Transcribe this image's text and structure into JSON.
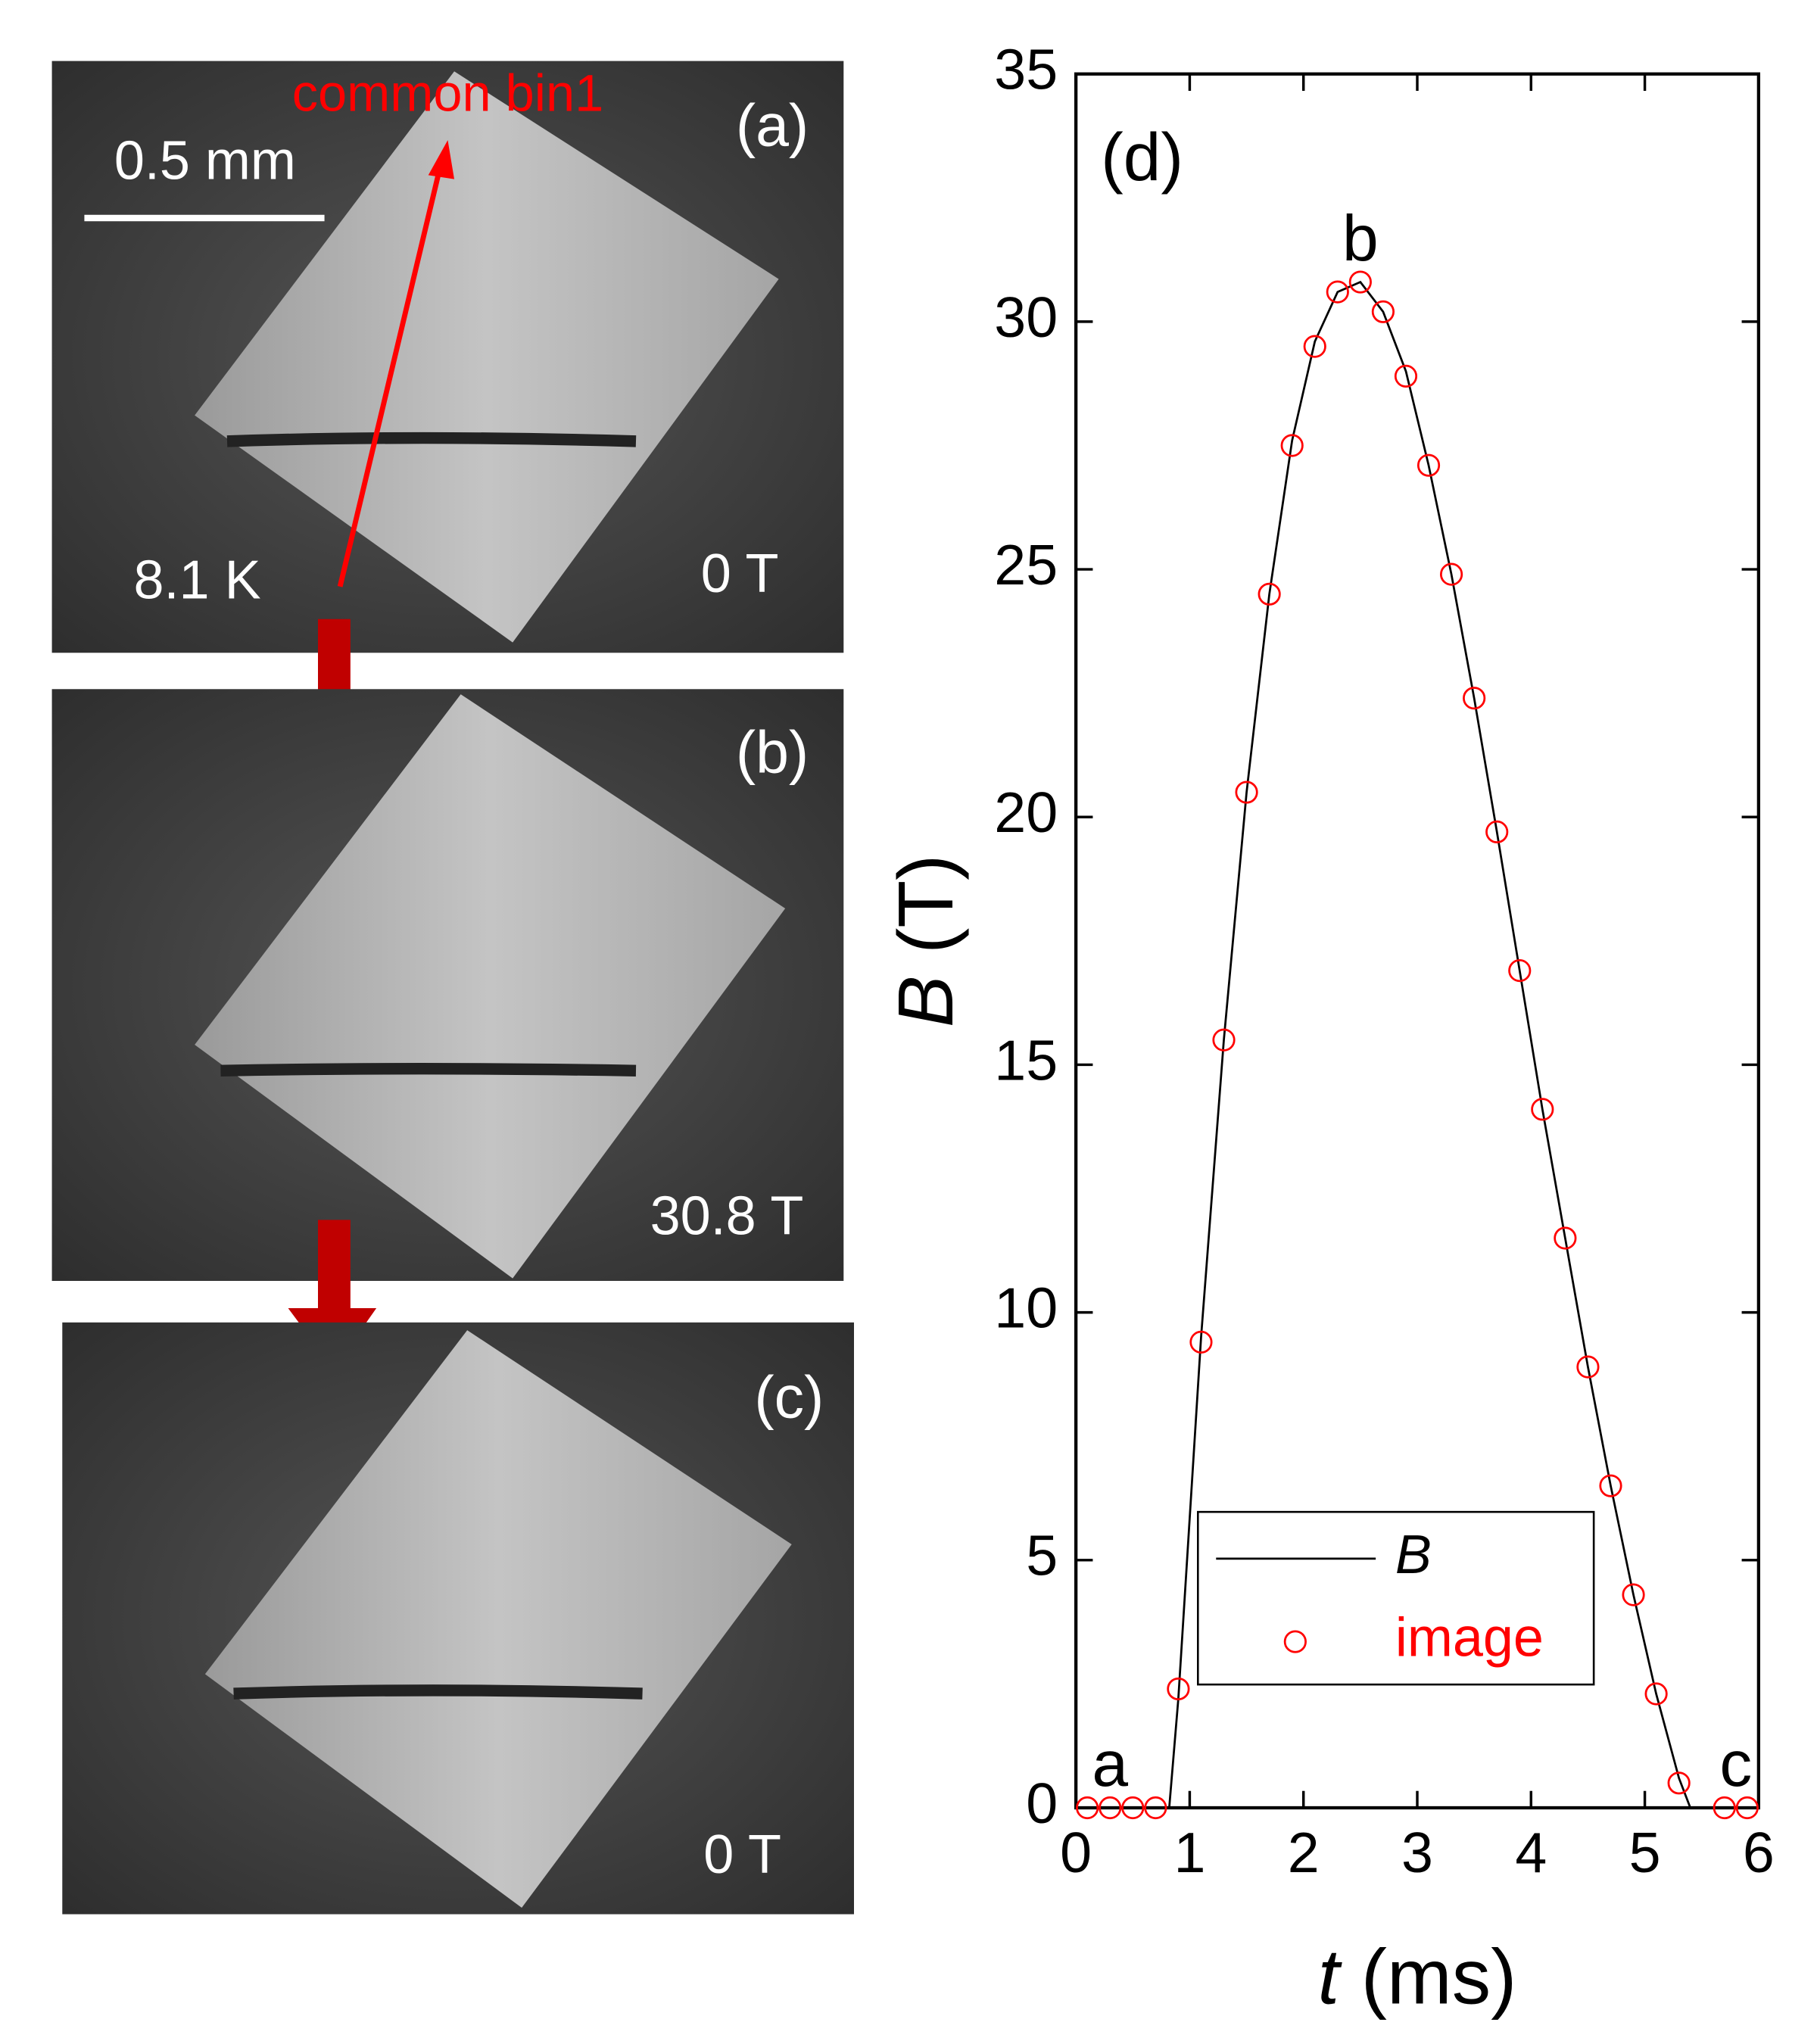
{
  "panels": [
    {
      "label": "(a)",
      "field": "0 T",
      "temperature": "8.1 K",
      "scale_bar": "0.5 mm",
      "bin": "common bin1"
    },
    {
      "label": "(b)",
      "field": "30.8 T"
    },
    {
      "label": "(c)",
      "field": "0 T"
    }
  ],
  "chart_data": {
    "type": "line",
    "panel_label": "(d)",
    "xlabel_symbol": "t",
    "xlabel_unit": "(ms)",
    "ylabel_symbol": "B",
    "ylabel_unit": "(T)",
    "annotations": [
      {
        "text": "a",
        "x": 0.3,
        "y": 0
      },
      {
        "text": "b",
        "x": 2.5,
        "y": 30.8
      },
      {
        "text": "c",
        "x": 5.8,
        "y": 0
      }
    ],
    "xlim": [
      0,
      6
    ],
    "xticks": [
      0,
      1,
      2,
      3,
      4,
      5,
      6
    ],
    "ylim": [
      0,
      35
    ],
    "yticks": [
      0,
      5,
      10,
      15,
      20,
      25,
      30,
      35
    ],
    "legend": "lower-left",
    "series": [
      {
        "name": "B",
        "kind": "line",
        "color": "#000000",
        "x": [
          0,
          0.82,
          0.9,
          1.1,
          1.3,
          1.5,
          1.7,
          1.9,
          2.1,
          2.3,
          2.5,
          2.7,
          2.9,
          3.1,
          3.3,
          3.5,
          3.7,
          3.9,
          4.1,
          4.3,
          4.5,
          4.7,
          4.9,
          5.1,
          5.3,
          5.4,
          6
        ],
        "values": [
          0,
          0,
          2.2,
          9.5,
          15.5,
          20.5,
          24.5,
          27.6,
          29.6,
          30.6,
          30.8,
          30.2,
          29.0,
          27.1,
          24.9,
          22.4,
          19.7,
          16.9,
          14.1,
          11.5,
          8.9,
          6.5,
          4.3,
          2.3,
          0.6,
          0,
          0
        ]
      },
      {
        "name": "image",
        "kind": "scatter",
        "color": "#ff0000",
        "x": [
          0.1,
          0.3,
          0.5,
          0.7,
          0.9,
          1.1,
          1.3,
          1.5,
          1.7,
          1.9,
          2.1,
          2.3,
          2.5,
          2.7,
          2.9,
          3.1,
          3.3,
          3.5,
          3.7,
          3.9,
          4.1,
          4.3,
          4.5,
          4.7,
          4.9,
          5.1,
          5.3,
          5.7,
          5.9
        ],
        "values": [
          0,
          0,
          0,
          0,
          2.4,
          9.4,
          15.5,
          20.5,
          24.5,
          27.5,
          29.5,
          30.6,
          30.8,
          30.2,
          28.9,
          27.1,
          24.9,
          22.4,
          19.7,
          16.9,
          14.1,
          11.5,
          8.9,
          6.5,
          4.3,
          2.3,
          0.5,
          0,
          0
        ]
      }
    ]
  }
}
